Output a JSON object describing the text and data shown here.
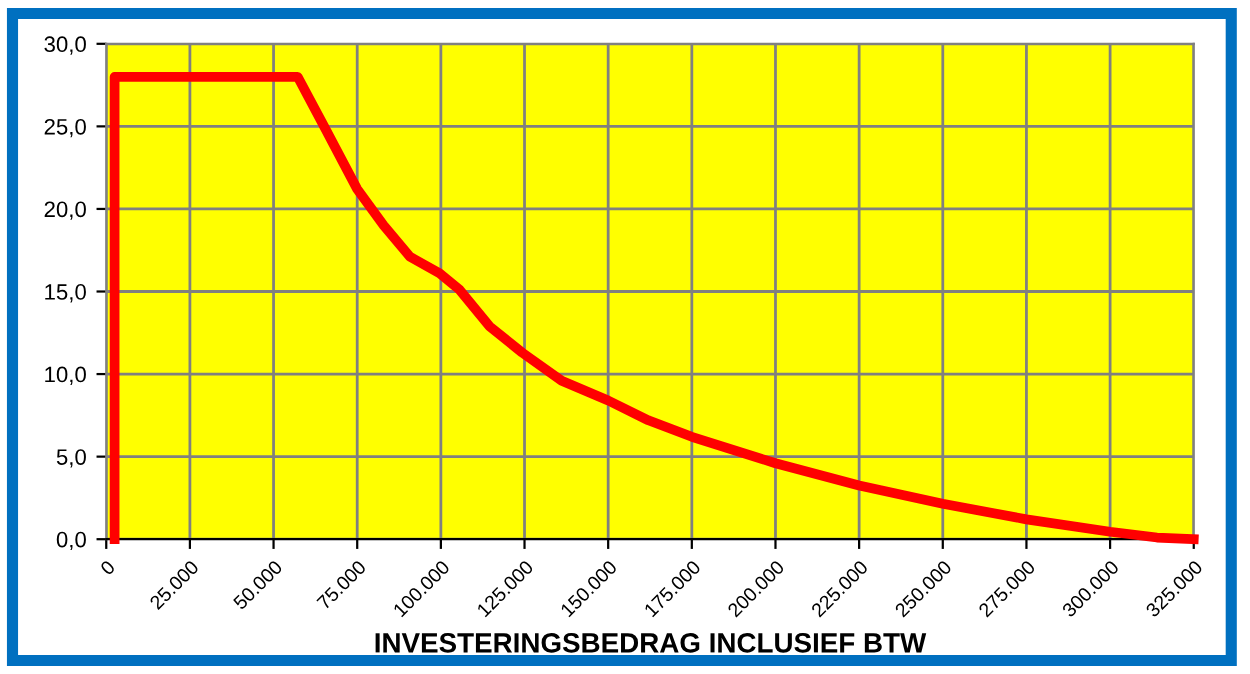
{
  "chart_data": {
    "type": "line",
    "xlabel": "INVESTERINGSBEDRAG INCLUSIEF BTW",
    "series": [
      {
        "color": "#ff0000",
        "x": [
          2500,
          2500,
          57200,
          65100,
          75000,
          82900,
          90800,
          99600,
          105600,
          114500,
          124300,
          136100,
          150000,
          162000,
          175000,
          200000,
          225000,
          250000,
          275000,
          300000,
          314000,
          325000
        ],
        "values": [
          0,
          28.0,
          28.0,
          25.0,
          21.2,
          19.0,
          17.1,
          16.1,
          15.1,
          12.9,
          11.3,
          9.6,
          8.4,
          7.2,
          6.2,
          4.6,
          3.25,
          2.15,
          1.2,
          0.45,
          0.1,
          0
        ]
      }
    ],
    "xlim": [
      0,
      325000
    ],
    "ylim": [
      0,
      30
    ],
    "xticks": [
      0,
      {
        "value": 25000,
        "label": "25.000"
      },
      {
        "value": 50000,
        "label": "50.000"
      },
      {
        "value": 75000,
        "label": "75.000"
      },
      {
        "value": 100000,
        "label": "100.000"
      },
      {
        "value": 125000,
        "label": "125.000"
      },
      {
        "value": 150000,
        "label": "150.000"
      },
      {
        "value": 175000,
        "label": "175.000"
      },
      {
        "value": 200000,
        "label": "200.000"
      },
      {
        "value": 225000,
        "label": "225.000"
      },
      {
        "value": 250000,
        "label": "250.000"
      },
      {
        "value": 275000,
        "label": "275.000"
      },
      {
        "value": 300000,
        "label": "300.000"
      },
      {
        "value": 325000,
        "label": "325.000"
      }
    ],
    "yticks": [
      {
        "value": 0,
        "label": "0,0"
      },
      {
        "value": 5,
        "label": "5,0"
      },
      {
        "value": 10,
        "label": "10,0"
      },
      {
        "value": 15,
        "label": "15,0"
      },
      {
        "value": 20,
        "label": "20,0"
      },
      {
        "value": 25,
        "label": "25,0"
      },
      {
        "value": 30,
        "label": "30,0"
      }
    ],
    "grid": true,
    "legend": false,
    "marker": "none",
    "line_style": "solid"
  }
}
